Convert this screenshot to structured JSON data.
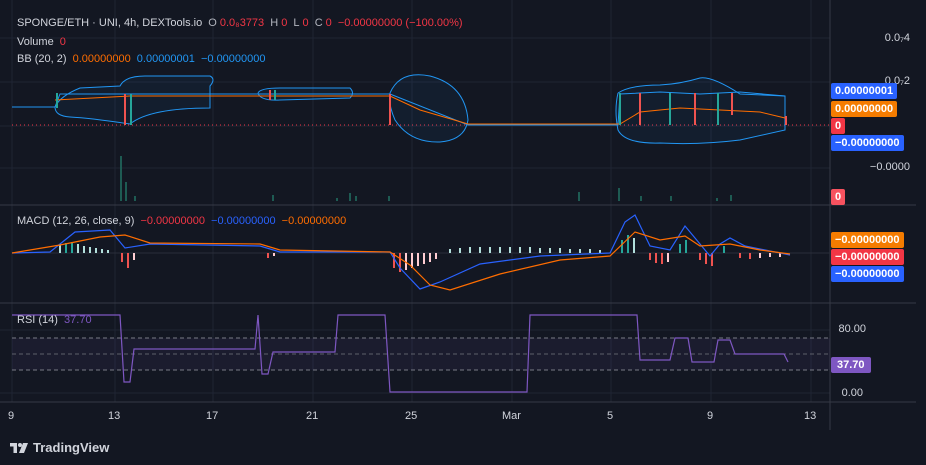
{
  "header": {
    "symbol": "SPONGE/ETH · UNI, 4h, DEXTools.io",
    "o_label": "O",
    "o_value": "0.0₈3773",
    "h_label": "H",
    "h_value": "0",
    "l_label": "L",
    "l_value": "0",
    "c_label": "C",
    "c_value": "0",
    "change": "−0.00000000 (−100.00%)",
    "volume_label": "Volume",
    "volume_value": "0",
    "bb_label": "BB (20, 2)",
    "bb_v1": "0.00000000",
    "bb_v2": "0.00000001",
    "bb_v3": "−0.00000000"
  },
  "macd": {
    "label": "MACD (12, 26, close, 9)",
    "v1": "−0.00000000",
    "v2": "−0.00000000",
    "v3": "−0.00000000"
  },
  "rsi": {
    "label": "RSI (14)",
    "value": "37.70"
  },
  "price_scale": {
    "labels": [
      "0.0₇4",
      "0.0₇2",
      "−0.0000"
    ]
  },
  "price_tags": [
    {
      "text": "0.00000001",
      "color": "#2962ff"
    },
    {
      "text": "0.00000000",
      "color": "#f57c00"
    },
    {
      "text": "0",
      "color": "#f23645"
    },
    {
      "text": "−0.00000000",
      "color": "#2962ff"
    },
    {
      "text": "0",
      "color": "#f7525f"
    }
  ],
  "macd_tags": [
    {
      "text": "−0.00000000",
      "color": "#f57c00"
    },
    {
      "text": "−0.00000000",
      "color": "#f23645"
    },
    {
      "text": "−0.00000000",
      "color": "#2962ff"
    }
  ],
  "rsi_scale": {
    "labels": [
      "80.00",
      "0.00"
    ],
    "tag": "37.70",
    "tag_color": "#7e57c2"
  },
  "time_axis": {
    "labels": [
      "9",
      "13",
      "17",
      "21",
      "25",
      "Mar",
      "5",
      "9",
      "13"
    ]
  },
  "brand": {
    "text": "TradingView"
  },
  "colors": {
    "up": "#26a69a",
    "down": "#ef5350",
    "bb": "#2196f3",
    "basis": "#ff6d00",
    "rsi": "#7e57c2",
    "macd": "#2962ff",
    "signal": "#ff6d00"
  }
}
